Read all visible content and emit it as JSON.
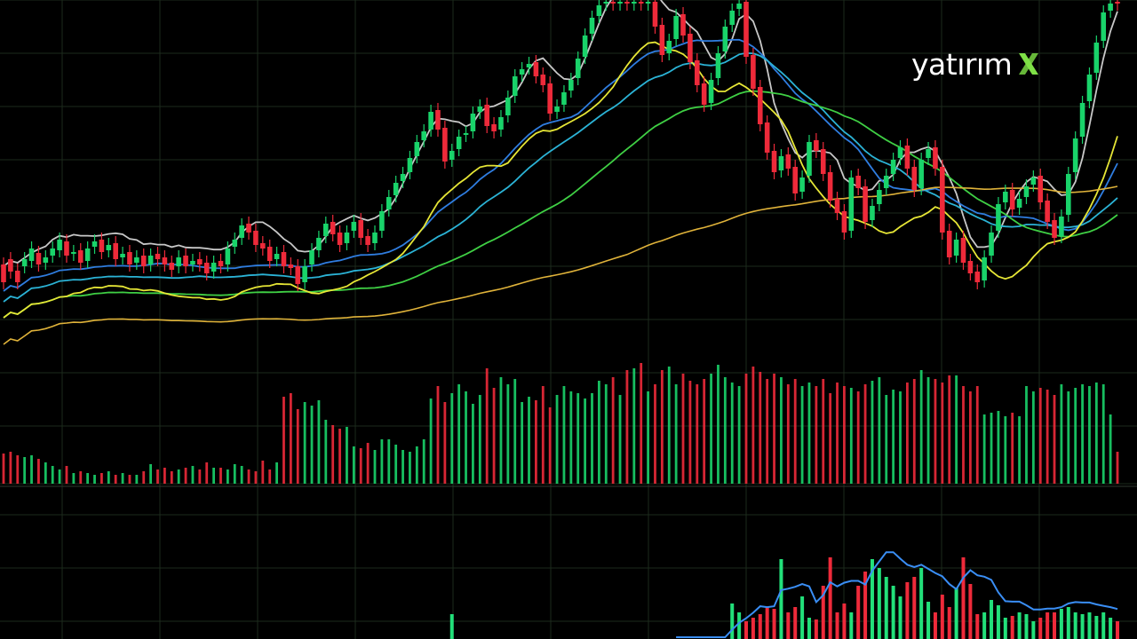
{
  "brand": {
    "wordmark": "yatırım",
    "mark": "X",
    "accent": "#7ee046"
  },
  "colors": {
    "background": "#000000",
    "grid": "#1c2a1c",
    "up": "#19d36a",
    "down": "#ee2a3a",
    "ma_lines": [
      "#c8c8c8",
      "#2f7de0",
      "#2bb3d6",
      "#3fcf44",
      "#e6e636",
      "#e0b33a",
      "#f0a030"
    ],
    "oscillator_line": "#3a8ef5"
  },
  "chart_data": {
    "type": "candlestick",
    "title": "",
    "xlabel": "",
    "ylabel": "",
    "grid": true,
    "legend": "none",
    "panels": [
      "price",
      "volume",
      "oscillator"
    ],
    "candles": [
      [
        298,
        318
      ],
      [
        292,
        306
      ],
      [
        305,
        318
      ],
      [
        300,
        292
      ],
      [
        294,
        280
      ],
      [
        285,
        298
      ],
      [
        296,
        290
      ],
      [
        288,
        280
      ],
      [
        282,
        270
      ],
      [
        272,
        288
      ],
      [
        286,
        284
      ],
      [
        282,
        296
      ],
      [
        294,
        280
      ],
      [
        278,
        272
      ],
      [
        270,
        284
      ],
      [
        282,
        276
      ],
      [
        274,
        292
      ],
      [
        290,
        286
      ],
      [
        284,
        298
      ],
      [
        296,
        290
      ],
      [
        288,
        300
      ],
      [
        298,
        288
      ],
      [
        286,
        292
      ],
      [
        290,
        298
      ],
      [
        296,
        304
      ],
      [
        300,
        290
      ],
      [
        288,
        300
      ],
      [
        298,
        294
      ],
      [
        292,
        298
      ],
      [
        296,
        308
      ],
      [
        306,
        296
      ],
      [
        294,
        300
      ],
      [
        298,
        280
      ],
      [
        278,
        270
      ],
      [
        268,
        254
      ],
      [
        252,
        262
      ],
      [
        260,
        276
      ],
      [
        274,
        280
      ],
      [
        278,
        294
      ],
      [
        292,
        286
      ],
      [
        284,
        300
      ],
      [
        298,
        302
      ],
      [
        300,
        320
      ],
      [
        318,
        300
      ],
      [
        298,
        282
      ],
      [
        282,
        268
      ],
      [
        266,
        252
      ],
      [
        250,
        264
      ],
      [
        262,
        276
      ],
      [
        274,
        262
      ],
      [
        260,
        250
      ],
      [
        248,
        268
      ],
      [
        266,
        276
      ],
      [
        274,
        262
      ],
      [
        260,
        238
      ],
      [
        236,
        222
      ],
      [
        220,
        206
      ],
      [
        204,
        196
      ],
      [
        194,
        178
      ],
      [
        176,
        160
      ],
      [
        158,
        148
      ],
      [
        146,
        126
      ],
      [
        124,
        146
      ],
      [
        144,
        182
      ],
      [
        180,
        170
      ],
      [
        168,
        154
      ],
      [
        152,
        150
      ],
      [
        148,
        128
      ],
      [
        126,
        120
      ],
      [
        118,
        142
      ],
      [
        140,
        148
      ],
      [
        146,
        132
      ],
      [
        130,
        110
      ],
      [
        108,
        86
      ],
      [
        84,
        78
      ],
      [
        76,
        72
      ],
      [
        70,
        86
      ],
      [
        84,
        96
      ],
      [
        94,
        128
      ],
      [
        126,
        120
      ],
      [
        118,
        104
      ],
      [
        102,
        90
      ],
      [
        88,
        66
      ],
      [
        64,
        40
      ],
      [
        38,
        20
      ],
      [
        18,
        6
      ],
      [
        4,
        2
      ],
      [
        2,
        4
      ],
      [
        4,
        2
      ],
      [
        2,
        4
      ],
      [
        4,
        2
      ],
      [
        2,
        4
      ],
      [
        4,
        2
      ],
      [
        2,
        30
      ],
      [
        28,
        62
      ],
      [
        60,
        46
      ],
      [
        44,
        18
      ],
      [
        16,
        40
      ],
      [
        38,
        70
      ],
      [
        68,
        96
      ],
      [
        94,
        118
      ],
      [
        116,
        90
      ],
      [
        88,
        60
      ],
      [
        58,
        30
      ],
      [
        28,
        12
      ],
      [
        10,
        4
      ],
      [
        2,
        64
      ],
      [
        62,
        100
      ],
      [
        98,
        140
      ],
      [
        138,
        172
      ],
      [
        170,
        194
      ],
      [
        192,
        176
      ],
      [
        174,
        190
      ],
      [
        188,
        218
      ],
      [
        216,
        200
      ],
      [
        198,
        160
      ],
      [
        158,
        170
      ],
      [
        168,
        196
      ],
      [
        194,
        226
      ],
      [
        224,
        240
      ],
      [
        238,
        262
      ],
      [
        260,
        200
      ],
      [
        198,
        212
      ],
      [
        210,
        250
      ],
      [
        248,
        232
      ],
      [
        230,
        214
      ],
      [
        212,
        198
      ],
      [
        196,
        180
      ],
      [
        178,
        166
      ],
      [
        164,
        190
      ],
      [
        188,
        214
      ],
      [
        212,
        180
      ],
      [
        178,
        168
      ],
      [
        166,
        190
      ],
      [
        188,
        262
      ],
      [
        260,
        290
      ],
      [
        288,
        270
      ],
      [
        268,
        296
      ],
      [
        294,
        308
      ],
      [
        306,
        318
      ],
      [
        316,
        290
      ],
      [
        288,
        262
      ],
      [
        260,
        230
      ],
      [
        228,
        216
      ],
      [
        214,
        236
      ],
      [
        234,
        224
      ],
      [
        222,
        210
      ],
      [
        208,
        200
      ],
      [
        198,
        228
      ],
      [
        226,
        250
      ],
      [
        248,
        268
      ],
      [
        266,
        244
      ],
      [
        242,
        196
      ],
      [
        194,
        156
      ],
      [
        154,
        116
      ],
      [
        114,
        84
      ],
      [
        82,
        48
      ],
      [
        46,
        14
      ],
      [
        12,
        4
      ],
      [
        2,
        4
      ]
    ],
    "volumes": [
      34,
      36,
      32,
      30,
      32,
      28,
      24,
      20,
      16,
      20,
      12,
      14,
      12,
      10,
      12,
      14,
      10,
      12,
      10,
      10,
      14,
      22,
      16,
      18,
      14,
      16,
      18,
      20,
      16,
      24,
      18,
      18,
      16,
      22,
      20,
      16,
      14,
      26,
      16,
      24,
      98,
      102,
      84,
      92,
      88,
      94,
      72,
      66,
      62,
      64,
      42,
      40,
      46,
      38,
      50,
      50,
      44,
      38,
      36,
      42,
      50,
      96,
      110,
      92,
      102,
      112,
      104,
      90,
      100,
      130,
      108,
      120,
      112,
      118,
      92,
      98,
      94,
      110,
      86,
      100,
      110,
      104,
      102,
      96,
      102,
      116,
      112,
      120,
      100,
      128,
      130,
      136,
      104,
      112,
      128,
      132,
      112,
      124,
      116,
      112,
      118,
      124,
      134,
      120,
      114,
      110,
      124,
      132,
      126,
      118,
      124,
      120,
      112,
      118,
      110,
      114,
      110,
      118,
      102,
      114,
      110,
      108,
      104,
      112,
      116,
      120,
      100,
      106,
      104,
      114,
      118,
      128,
      120,
      118,
      114,
      122,
      122,
      110,
      104,
      110,
      78,
      80,
      82,
      76,
      80,
      76,
      110,
      104,
      108,
      106,
      100,
      112,
      104,
      108,
      112,
      110,
      114,
      112,
      78,
      36
    ],
    "oscillator_bars": [
      0,
      0,
      0,
      0,
      0,
      0,
      0,
      0,
      0,
      0,
      0,
      0,
      0,
      0,
      0,
      0,
      0,
      0,
      0,
      0,
      0,
      0,
      0,
      0,
      0,
      0,
      0,
      0,
      0,
      0,
      0,
      0,
      0,
      0,
      0,
      0,
      0,
      0,
      0,
      0,
      0,
      0,
      0,
      0,
      0,
      0,
      0,
      0,
      0,
      0,
      0,
      0,
      0,
      0,
      0,
      0,
      0,
      0,
      0,
      0,
      0,
      0,
      0,
      0,
      28,
      0,
      0,
      0,
      0,
      0,
      0,
      0,
      0,
      0,
      0,
      0,
      0,
      0,
      0,
      0,
      0,
      0,
      0,
      0,
      0,
      0,
      0,
      0,
      0,
      0,
      0,
      0,
      0,
      0,
      0,
      0,
      0,
      0,
      0,
      0,
      0,
      0,
      0,
      0,
      40,
      30,
      20,
      24,
      28,
      36,
      34,
      90,
      30,
      36,
      48,
      24,
      22,
      60,
      92,
      30,
      40,
      30,
      60,
      76,
      90,
      80,
      70,
      60,
      48,
      64,
      70,
      80,
      42,
      30,
      50,
      36,
      58,
      92,
      62,
      28,
      30,
      44,
      38,
      24,
      26,
      30,
      28,
      20,
      24,
      30,
      30,
      34,
      36,
      30,
      28,
      30,
      26,
      30,
      24,
      20
    ]
  }
}
